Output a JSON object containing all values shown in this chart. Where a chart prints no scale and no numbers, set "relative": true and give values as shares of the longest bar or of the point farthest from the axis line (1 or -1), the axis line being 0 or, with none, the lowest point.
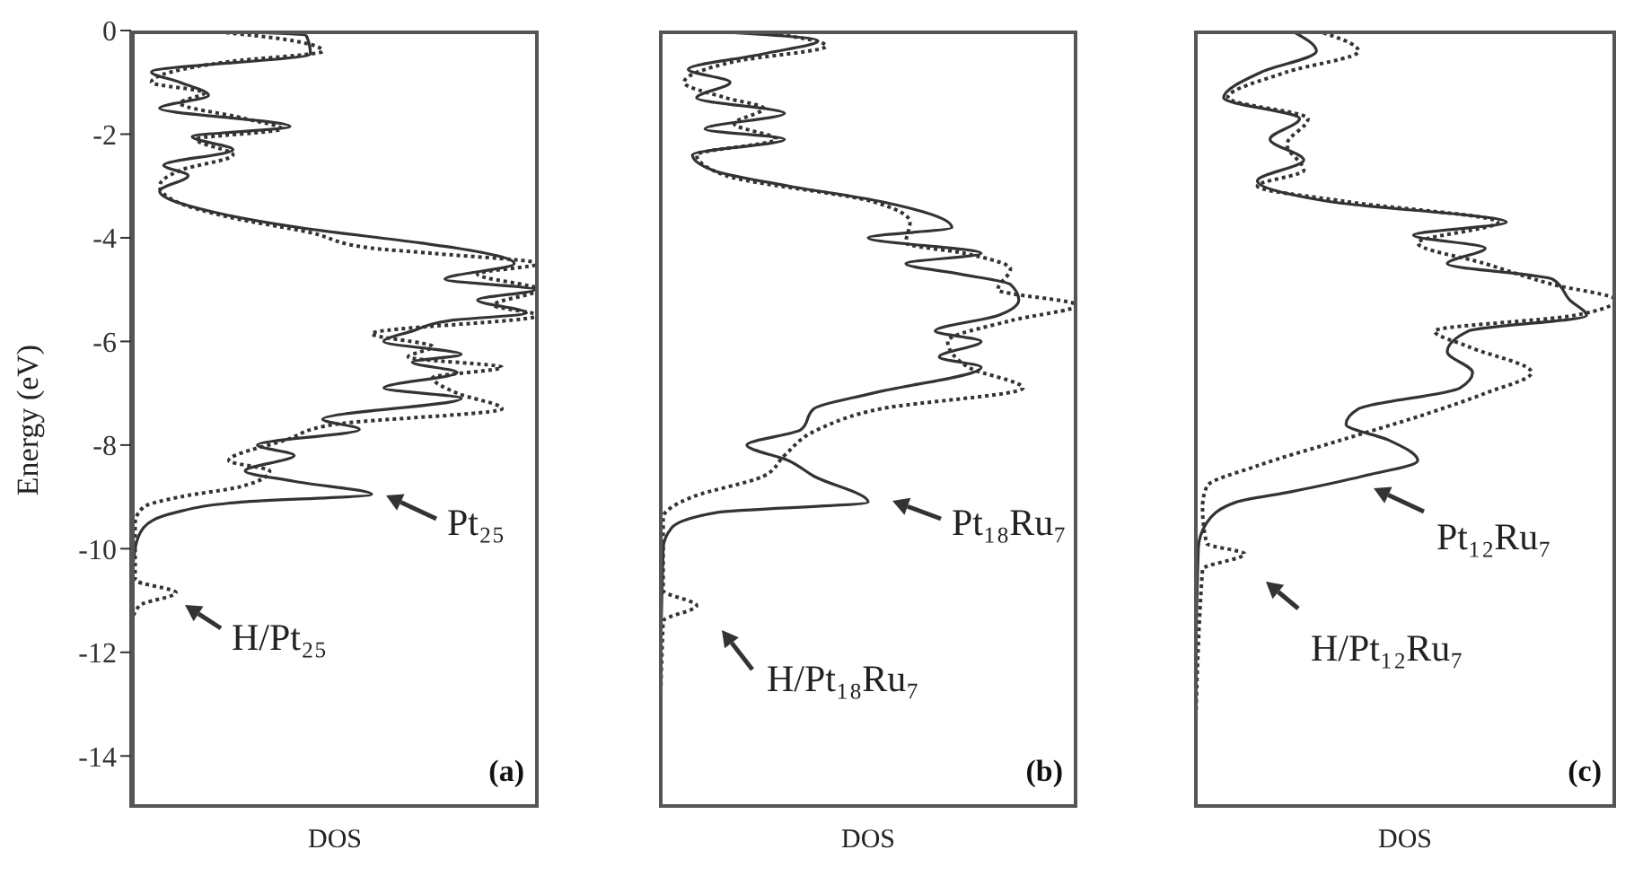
{
  "chart_data": [
    {
      "type": "line",
      "orientation": "horizontal",
      "relative": true,
      "xlabel": "DOS",
      "ylabel": "Energy (eV)",
      "ylim": [
        -15,
        0
      ],
      "yticks": [
        -14,
        -12,
        -10,
        -8,
        -6,
        -4,
        -2,
        0
      ],
      "annotations": [
        "(a)",
        "Pt₂₅",
        "H/Pt₂₅"
      ],
      "series": [
        {
          "color": "#333333",
          "line_style": "solid",
          "x": [
            0,
            -0.1,
            -0.45,
            -0.8,
            -1.0,
            -1.25,
            -1.5,
            -1.85,
            -2.05,
            -2.3,
            -2.6,
            -2.8,
            -3.1,
            -3.5,
            -3.8,
            -4.1,
            -4.2,
            -4.5,
            -4.8,
            -5.0,
            -5.2,
            -5.45,
            -5.6,
            -5.8,
            -6.0,
            -6.25,
            -6.4,
            -6.6,
            -6.9,
            -7.1,
            -7.5,
            -7.7,
            -8.0,
            -8.2,
            -8.5,
            -8.7,
            -8.95,
            -9.1,
            -9.3,
            -9.6,
            -10,
            -11,
            -15
          ],
          "values": [
            0.18,
            0.43,
            0.44,
            0.05,
            0.12,
            0.19,
            0.07,
            0.39,
            0.15,
            0.25,
            0.08,
            0.14,
            0.07,
            0.2,
            0.41,
            0.71,
            0.8,
            0.94,
            0.77,
            0.99,
            0.85,
            0.97,
            0.78,
            0.69,
            0.62,
            0.81,
            0.69,
            0.8,
            0.62,
            0.81,
            0.47,
            0.56,
            0.31,
            0.4,
            0.28,
            0.4,
            0.59,
            0.27,
            0.11,
            0.03,
            0.01,
            0.0,
            0
          ]
        },
        {
          "color": "#333333",
          "line_style": "dotted",
          "x": [
            0,
            -0.2,
            -0.4,
            -0.6,
            -1.0,
            -1.2,
            -1.4,
            -1.7,
            -1.9,
            -2.1,
            -2.4,
            -2.7,
            -3.0,
            -3.3,
            -3.6,
            -3.9,
            -4.2,
            -4.3,
            -4.5,
            -4.7,
            -5.0,
            -5.3,
            -5.5,
            -5.85,
            -6.1,
            -6.3,
            -6.5,
            -6.7,
            -7.0,
            -7.3,
            -7.6,
            -7.9,
            -8.3,
            -8.5,
            -8.8,
            -9.0,
            -9.2,
            -9.5,
            -10.6,
            -10.85,
            -11.1,
            -11.5,
            -15
          ],
          "values": [
            0.18,
            0.4,
            0.47,
            0.24,
            0.05,
            0.18,
            0.12,
            0.28,
            0.37,
            0.16,
            0.25,
            0.12,
            0.07,
            0.11,
            0.24,
            0.44,
            0.59,
            0.74,
            1,
            0.85,
            1,
            0.89,
            1,
            0.59,
            0.74,
            0.68,
            0.91,
            0.74,
            0.8,
            0.91,
            0.5,
            0.38,
            0.24,
            0.34,
            0.27,
            0.12,
            0.03,
            0.01,
            0.01,
            0.11,
            0.02,
            0.0,
            0
          ]
        }
      ]
    },
    {
      "type": "line",
      "orientation": "horizontal",
      "relative": true,
      "xlabel": "DOS",
      "ylim": [
        -15,
        0
      ],
      "yticks": [
        -14,
        -12,
        -10,
        -8,
        -6,
        -4,
        -2,
        0
      ],
      "tick_labels": false,
      "annotations": [
        "(b)",
        "Pt₁₈Ru₇",
        "H/Pt₁₈Ru₇"
      ],
      "series": [
        {
          "color": "#333333",
          "line_style": "solid",
          "x": [
            0,
            -0.2,
            -0.45,
            -0.75,
            -1.0,
            -1.3,
            -1.6,
            -1.9,
            -2.1,
            -2.4,
            -2.7,
            -3.0,
            -3.3,
            -3.8,
            -4.0,
            -4.3,
            -4.5,
            -4.7,
            -4.9,
            -5.2,
            -5.5,
            -5.8,
            -6.0,
            -6.3,
            -6.5,
            -7.0,
            -7.3,
            -7.7,
            -8.0,
            -8.3,
            -8.6,
            -9.1,
            -9.3,
            -9.6,
            -10,
            -15
          ],
          "values": [
            0.09,
            0.38,
            0.25,
            0.07,
            0.17,
            0.09,
            0.3,
            0.11,
            0.3,
            0.08,
            0.13,
            0.31,
            0.53,
            0.7,
            0.5,
            0.77,
            0.59,
            0.72,
            0.84,
            0.86,
            0.81,
            0.66,
            0.77,
            0.67,
            0.77,
            0.51,
            0.37,
            0.34,
            0.21,
            0.31,
            0.37,
            0.5,
            0.14,
            0.03,
            0.01,
            0
          ]
        },
        {
          "color": "#333333",
          "line_style": "dotted",
          "x": [
            0,
            -0.3,
            -0.6,
            -1.0,
            -1.3,
            -1.5,
            -1.8,
            -2.1,
            -2.4,
            -2.8,
            -3.3,
            -3.7,
            -4.1,
            -4.3,
            -4.6,
            -5.0,
            -5.3,
            -5.6,
            -6.0,
            -6.5,
            -6.9,
            -7.3,
            -7.7,
            -8.2,
            -8.6,
            -9.0,
            -9.4,
            -10.8,
            -11.1,
            -11.4,
            -15
          ],
          "values": [
            0.22,
            0.4,
            0.18,
            0.06,
            0.16,
            0.25,
            0.18,
            0.28,
            0.09,
            0.16,
            0.51,
            0.6,
            0.59,
            0.73,
            0.84,
            0.81,
            1,
            0.84,
            0.69,
            0.74,
            0.87,
            0.53,
            0.38,
            0.3,
            0.25,
            0.08,
            0.01,
            0.01,
            0.09,
            0.01,
            0
          ]
        }
      ]
    },
    {
      "type": "line",
      "orientation": "horizontal",
      "relative": true,
      "xlabel": "DOS",
      "ylim": [
        -15,
        0
      ],
      "yticks": [
        -14,
        -12,
        -10,
        -8,
        -6,
        -4,
        -2,
        0
      ],
      "tick_labels": false,
      "annotations": [
        "(c)",
        "Pt₁₂Ru₇",
        "H/Pt₁₂Ru₇"
      ],
      "series": [
        {
          "color": "#333333",
          "line_style": "solid",
          "x": [
            0,
            -0.4,
            -0.8,
            -1.3,
            -1.7,
            -2.1,
            -2.5,
            -2.9,
            -3.3,
            -3.7,
            -3.95,
            -4.2,
            -4.5,
            -4.8,
            -5.2,
            -5.5,
            -5.8,
            -6.2,
            -6.6,
            -6.9,
            -7.3,
            -7.6,
            -7.9,
            -8.3,
            -8.6,
            -8.9,
            -9.1,
            -9.5,
            -10,
            -15
          ],
          "values": [
            0.23,
            0.29,
            0.16,
            0.07,
            0.25,
            0.18,
            0.26,
            0.15,
            0.32,
            0.74,
            0.52,
            0.69,
            0.6,
            0.85,
            0.89,
            0.93,
            0.65,
            0.6,
            0.66,
            0.63,
            0.39,
            0.36,
            0.46,
            0.53,
            0.4,
            0.23,
            0.1,
            0.03,
            0.01,
            0
          ]
        },
        {
          "color": "#333333",
          "line_style": "dotted",
          "x": [
            0,
            -0.4,
            -0.8,
            -1.3,
            -1.7,
            -2.2,
            -2.7,
            -3.0,
            -3.3,
            -3.7,
            -4.1,
            -4.5,
            -4.9,
            -5.2,
            -5.5,
            -5.8,
            -6.1,
            -6.6,
            -7.0,
            -7.4,
            -7.9,
            -8.4,
            -8.8,
            -9.2,
            -9.9,
            -10.1,
            -10.4,
            -15
          ],
          "values": [
            0.29,
            0.39,
            0.22,
            0.08,
            0.27,
            0.22,
            0.26,
            0.15,
            0.36,
            0.72,
            0.53,
            0.69,
            0.85,
            1,
            0.9,
            0.57,
            0.65,
            0.8,
            0.69,
            0.55,
            0.35,
            0.15,
            0.03,
            0.02,
            0.03,
            0.12,
            0.02,
            0
          ]
        }
      ]
    }
  ]
}
